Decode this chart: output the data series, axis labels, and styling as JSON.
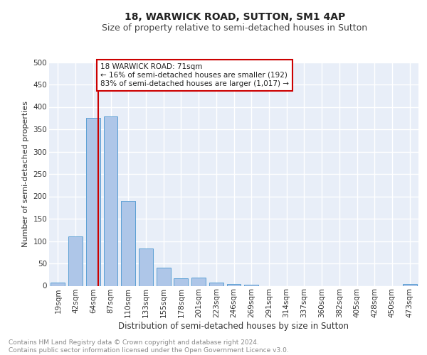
{
  "title": "18, WARWICK ROAD, SUTTON, SM1 4AP",
  "subtitle": "Size of property relative to semi-detached houses in Sutton",
  "xlabel": "Distribution of semi-detached houses by size in Sutton",
  "ylabel": "Number of semi-detached properties",
  "categories": [
    "19sqm",
    "42sqm",
    "64sqm",
    "87sqm",
    "110sqm",
    "133sqm",
    "155sqm",
    "178sqm",
    "201sqm",
    "223sqm",
    "246sqm",
    "269sqm",
    "291sqm",
    "314sqm",
    "337sqm",
    "360sqm",
    "382sqm",
    "405sqm",
    "428sqm",
    "450sqm",
    "473sqm"
  ],
  "values": [
    7,
    110,
    375,
    378,
    190,
    83,
    40,
    16,
    18,
    7,
    4,
    2,
    0,
    0,
    0,
    0,
    0,
    0,
    0,
    0,
    4
  ],
  "bar_color": "#aec6e8",
  "bar_edge_color": "#5a9fd4",
  "background_color": "#e8eef8",
  "grid_color": "#ffffff",
  "property_line_color": "#cc0000",
  "annotation_text": "18 WARWICK ROAD: 71sqm\n← 16% of semi-detached houses are smaller (192)\n83% of semi-detached houses are larger (1,017) →",
  "annotation_box_color": "#cc0000",
  "ylim": [
    0,
    500
  ],
  "yticks": [
    0,
    50,
    100,
    150,
    200,
    250,
    300,
    350,
    400,
    450,
    500
  ],
  "footer_text": "Contains HM Land Registry data © Crown copyright and database right 2024.\nContains public sector information licensed under the Open Government Licence v3.0.",
  "title_fontsize": 10,
  "subtitle_fontsize": 9,
  "xlabel_fontsize": 8.5,
  "ylabel_fontsize": 8,
  "tick_fontsize": 7.5,
  "annotation_fontsize": 7.5,
  "footer_fontsize": 6.5
}
